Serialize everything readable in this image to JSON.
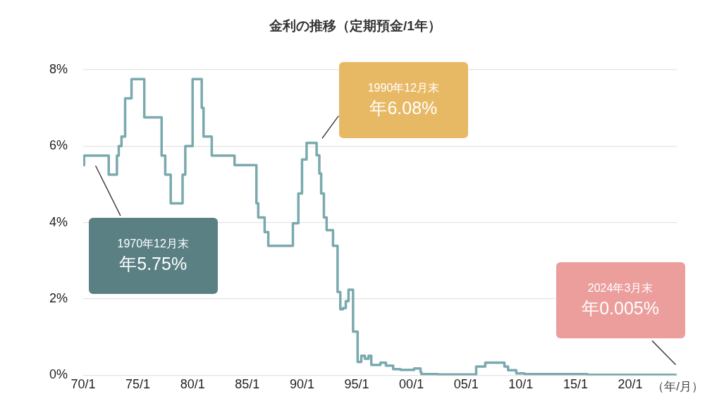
{
  "chart_data": {
    "type": "step",
    "title": "金利の推移（定期預金/1年）",
    "xlabel": "（年/月）",
    "x": [
      "1970-01",
      "1970-02",
      "1972-05",
      "1973-02",
      "1973-04",
      "1973-07",
      "1973-11",
      "1974-06",
      "1975-08",
      "1977-03",
      "1977-07",
      "1978-01",
      "1979-02",
      "1979-05",
      "1980-01",
      "1980-11",
      "1981-01",
      "1981-10",
      "1983-11",
      "1985-11",
      "1986-01",
      "1986-08",
      "1986-12",
      "1989-03",
      "1989-09",
      "1990-01",
      "1990-06",
      "1991-05",
      "1991-08",
      "1991-10",
      "1992-01",
      "1992-04",
      "1992-11",
      "1993-04",
      "1993-07",
      "1993-10",
      "1994-01",
      "1994-04",
      "1994-09",
      "1995-02",
      "1995-06",
      "1995-10",
      "1996-02",
      "1996-05",
      "1997-03",
      "1997-09",
      "1998-05",
      "1999-01",
      "2000-04",
      "2000-11",
      "2000-12",
      "2002-06",
      "2005-12",
      "2006-10",
      "2008-07",
      "2008-11",
      "2009-08",
      "2010-05",
      "2016-02",
      "2024-03"
    ],
    "values": [
      5.5,
      5.75,
      5.25,
      5.75,
      6.0,
      6.25,
      7.25,
      7.75,
      6.75,
      5.75,
      5.25,
      4.5,
      5.25,
      6.0,
      7.75,
      7.0,
      6.25,
      5.75,
      5.5,
      4.5,
      4.13,
      3.75,
      3.39,
      3.98,
      4.76,
      5.65,
      6.08,
      5.76,
      5.28,
      4.76,
      4.13,
      3.8,
      3.39,
      2.18,
      1.73,
      1.76,
      1.94,
      2.24,
      1.14,
      0.35,
      0.51,
      0.43,
      0.51,
      0.27,
      0.33,
      0.25,
      0.16,
      0.14,
      0.18,
      0.08,
      0.03,
      0.02,
      0.23,
      0.33,
      0.23,
      0.13,
      0.05,
      0.03,
      0.01,
      0.01
    ],
    "color": "#7aa9ae",
    "xlim": [
      "1970-01",
      "2024-04"
    ],
    "ylim": [
      0,
      8
    ],
    "xticks": [
      {
        "value": "1970-01",
        "label": "70/1"
      },
      {
        "value": "1975-01",
        "label": "75/1"
      },
      {
        "value": "1980-01",
        "label": "80/1"
      },
      {
        "value": "1985-01",
        "label": "85/1"
      },
      {
        "value": "1990-01",
        "label": "90/1"
      },
      {
        "value": "1995-01",
        "label": "95/1"
      },
      {
        "value": "2000-01",
        "label": "00/1"
      },
      {
        "value": "2005-01",
        "label": "05/1"
      },
      {
        "value": "2010-01",
        "label": "10/1"
      },
      {
        "value": "2015-01",
        "label": "15/1"
      },
      {
        "value": "2020-01",
        "label": "20/1"
      }
    ],
    "yticks": [
      {
        "value": 0,
        "label": "0%"
      },
      {
        "value": 2,
        "label": "2%"
      },
      {
        "value": 4,
        "label": "4%"
      },
      {
        "value": 6,
        "label": "6%"
      },
      {
        "value": 8,
        "label": "8%"
      }
    ],
    "grid": "y",
    "annotations": [
      "1970年12月末",
      "年5.75%",
      "1990年12月末",
      "年6.08%",
      "2024年3月末",
      "年0.005%"
    ]
  }
}
